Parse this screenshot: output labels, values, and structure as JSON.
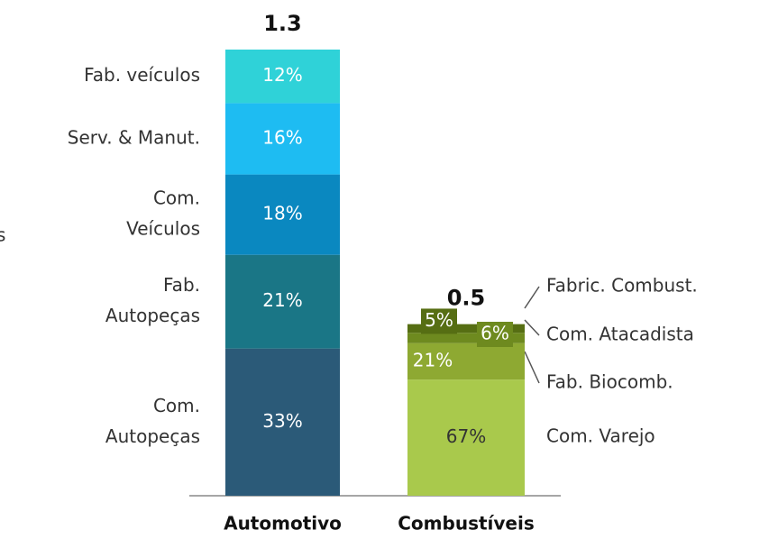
{
  "chart_data": {
    "type": "stacked_bar",
    "annotation": "s",
    "bars": [
      {
        "category": "Automotivo",
        "total": 1.3,
        "segments": [
          {
            "name": [
              "Com.",
              "Autopeças"
            ],
            "value": 33,
            "label": "33%",
            "color": "#2b5a78"
          },
          {
            "name": [
              "Fab.",
              "Autopeças"
            ],
            "value": 21,
            "label": "21%",
            "color": "#1a7686"
          },
          {
            "name": [
              "Com.",
              "Veículos"
            ],
            "value": 18,
            "label": "18%",
            "color": "#0a88c0"
          },
          {
            "name": [
              "Serv. & Manut."
            ],
            "value": 16,
            "label": "16%",
            "color": "#1ebcf2"
          },
          {
            "name": [
              "Fab. veículos"
            ],
            "value": 12,
            "label": "12%",
            "color": "#2fd2d8"
          }
        ]
      },
      {
        "category": "Combustíveis",
        "total": 0.5,
        "segments": [
          {
            "name": [
              "Com. Varejo"
            ],
            "value": 67,
            "label": "67%",
            "color": "#a9c94c"
          },
          {
            "name": [
              "Fab. Biocomb."
            ],
            "value": 21,
            "label": "21%",
            "color": "#8ea932"
          },
          {
            "name": [
              "Com. Atacadista"
            ],
            "value": 6,
            "label": "6%",
            "color": "#6e8a1f"
          },
          {
            "name": [
              "Fabric. Combust."
            ],
            "value": 5,
            "label": "5%",
            "color": "#566e13"
          }
        ]
      }
    ]
  }
}
